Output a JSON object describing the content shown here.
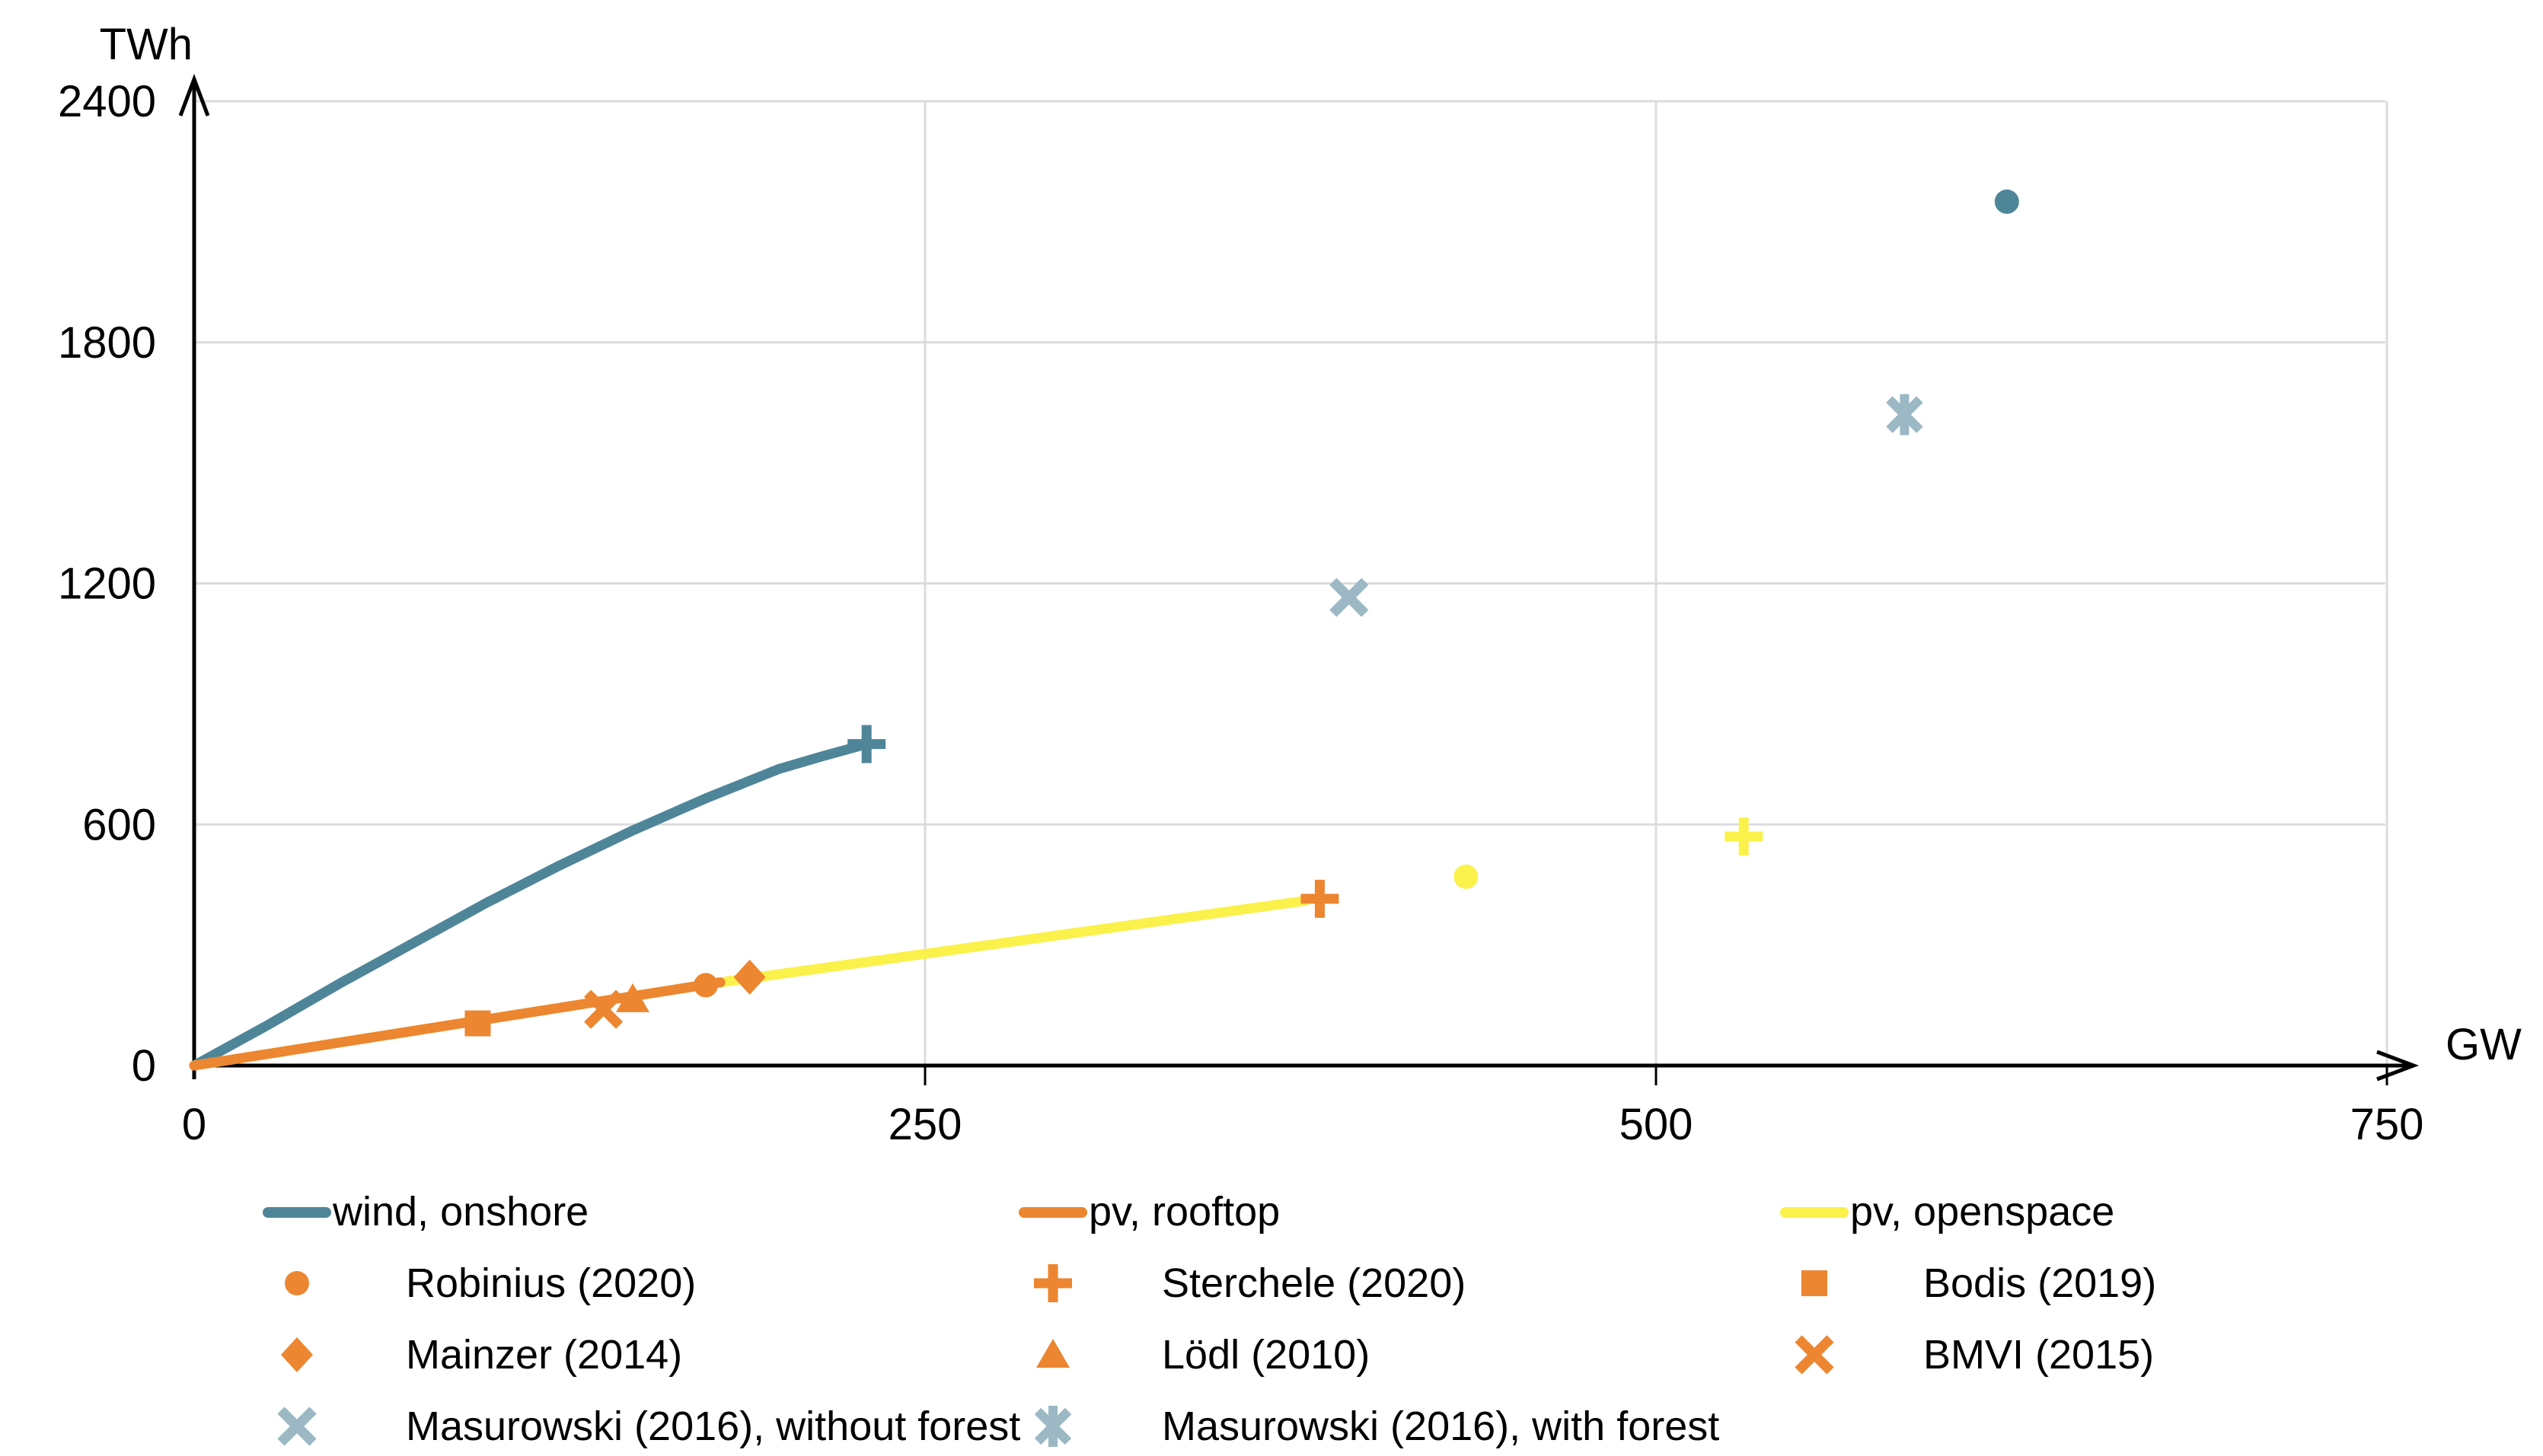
{
  "chart_data": {
    "type": "line+scatter",
    "title": "",
    "xlabel_unit": "GW",
    "ylabel_unit": "TWh",
    "x_ticks": [
      0,
      250,
      500,
      750
    ],
    "y_ticks": [
      0,
      600,
      1200,
      1800,
      2400
    ],
    "xlim": [
      0,
      760
    ],
    "ylim": [
      0,
      2400
    ],
    "grid": true,
    "colors": {
      "wind": "#4F8598",
      "pv_rooftop": "#EC8631",
      "pv_openspace": "#FAF14B",
      "masurowski_steel": "#9BB8C4",
      "gridline": "#DCDCDC",
      "axis": "#000000"
    },
    "series": [
      {
        "name": "wind, onshore",
        "type": "line",
        "color": "#4F8598",
        "points": [
          [
            0,
            0
          ],
          [
            25,
            100
          ],
          [
            50,
            205
          ],
          [
            75,
            305
          ],
          [
            100,
            405
          ],
          [
            125,
            498
          ],
          [
            150,
            585
          ],
          [
            175,
            665
          ],
          [
            200,
            738
          ],
          [
            215,
            770
          ],
          [
            230,
            800
          ]
        ]
      },
      {
        "name": "pv, openspace",
        "type": "line",
        "color": "#FAF14B",
        "points": [
          [
            0,
            0
          ],
          [
            180,
            207
          ],
          [
            380,
            410
          ]
        ]
      },
      {
        "name": "pv, rooftop",
        "type": "line",
        "color": "#EC8631",
        "points": [
          [
            0,
            0
          ],
          [
            180,
            207
          ]
        ]
      }
    ],
    "scatter": [
      {
        "study": "Robinius (2020)",
        "marker": "circle",
        "points": [
          {
            "x": 175,
            "y": 200,
            "color": "#EC8631",
            "tech": "pv, rooftop"
          },
          {
            "x": 435,
            "y": 470,
            "color": "#FAF14B",
            "tech": "pv, openspace"
          },
          {
            "x": 620,
            "y": 2150,
            "color": "#4F8598",
            "tech": "wind, onshore"
          }
        ]
      },
      {
        "study": "Sterchele (2020)",
        "marker": "plus",
        "points": [
          {
            "x": 230,
            "y": 800,
            "color": "#4F8598",
            "tech": "wind, onshore"
          },
          {
            "x": 385,
            "y": 415,
            "color": "#EC8631",
            "tech": "pv, rooftop"
          },
          {
            "x": 530,
            "y": 570,
            "color": "#FAF14B",
            "tech": "pv, openspace"
          }
        ]
      },
      {
        "study": "Bodis (2019)",
        "marker": "square",
        "points": [
          {
            "x": 97,
            "y": 105,
            "color": "#EC8631",
            "tech": "pv, rooftop"
          }
        ]
      },
      {
        "study": "Mainzer (2014)",
        "marker": "diamond",
        "points": [
          {
            "x": 190,
            "y": 220,
            "color": "#EC8631",
            "tech": "pv, rooftop"
          }
        ]
      },
      {
        "study": "Lödl (2010)",
        "marker": "triangle",
        "points": [
          {
            "x": 150,
            "y": 165,
            "color": "#EC8631",
            "tech": "pv, rooftop"
          }
        ]
      },
      {
        "study": "BMVI (2015)",
        "marker": "x",
        "points": [
          {
            "x": 140,
            "y": 140,
            "color": "#EC8631",
            "tech": "pv, rooftop"
          }
        ]
      },
      {
        "study": "Masurowski (2016), without forest",
        "marker": "x",
        "points": [
          {
            "x": 395,
            "y": 1165,
            "color": "#9BB8C4",
            "tech": "wind, onshore"
          }
        ]
      },
      {
        "study": "Masurowski (2016), with forest",
        "marker": "x-bar",
        "points": [
          {
            "x": 585,
            "y": 1620,
            "color": "#9BB8C4",
            "tech": "wind, onshore"
          }
        ]
      }
    ]
  },
  "legend": {
    "rows": [
      {
        "items": [
          {
            "marker": "line",
            "color": "#4F8598",
            "label": "wind, onshore"
          },
          {
            "marker": "line",
            "color": "#EC8631",
            "label": "pv, rooftop"
          },
          {
            "marker": "line",
            "color": "#FAF14B",
            "label": "pv, openspace"
          }
        ]
      },
      {
        "items": [
          {
            "marker": "circle",
            "color": "#EC8631",
            "label": "Robinius (2020)"
          },
          {
            "marker": "plus",
            "color": "#EC8631",
            "label": "Sterchele (2020)"
          },
          {
            "marker": "square",
            "color": "#EC8631",
            "label": "Bodis (2019)"
          }
        ]
      },
      {
        "items": [
          {
            "marker": "diamond",
            "color": "#EC8631",
            "label": "Mainzer (2014)"
          },
          {
            "marker": "triangle",
            "color": "#EC8631",
            "label": "Lödl (2010)"
          },
          {
            "marker": "x",
            "color": "#EC8631",
            "label": "BMVI (2015)"
          }
        ]
      },
      {
        "items": [
          {
            "marker": "x",
            "color": "#9BB8C4",
            "label": "Masurowski (2016), without forest"
          },
          {
            "marker": "x-bar",
            "color": "#9BB8C4",
            "label": "Masurowski (2016), with forest"
          }
        ]
      }
    ]
  }
}
